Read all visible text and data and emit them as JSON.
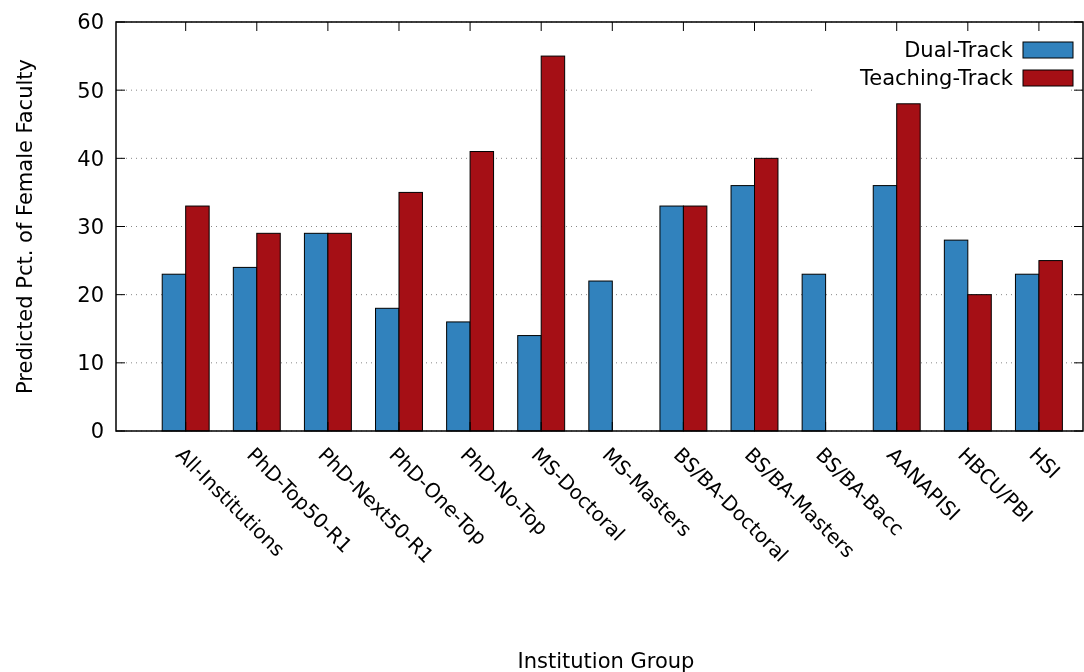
{
  "chart_data": {
    "type": "bar",
    "xlabel": "Institution Group",
    "ylabel": "Predicted Pct. of Female Faculty",
    "categories": [
      "All-Institutions",
      "PhD-Top50-R1",
      "PhD-Next50-R1",
      "PhD-One-Top",
      "PhD-No-Top",
      "MS-Doctoral",
      "MS-Masters",
      "BS/BA-Doctoral",
      "BS/BA-Masters",
      "BS/BA-Bacc",
      "AANAPISI",
      "HBCU/PBI",
      "HSI"
    ],
    "series": [
      {
        "name": "Dual-Track",
        "color": "#3182bd",
        "values": [
          23,
          24,
          29,
          18,
          16,
          14,
          22,
          33,
          36,
          23,
          36,
          28,
          23
        ]
      },
      {
        "name": "Teaching-Track",
        "color": "#a50f15",
        "values": [
          33,
          29,
          29,
          35,
          41,
          55,
          null,
          33,
          40,
          null,
          48,
          20,
          25
        ]
      }
    ],
    "ylim": [
      0,
      60
    ],
    "yticks": [
      0,
      10,
      20,
      30,
      40,
      50,
      60
    ],
    "grid": "y",
    "legend": "top right"
  }
}
